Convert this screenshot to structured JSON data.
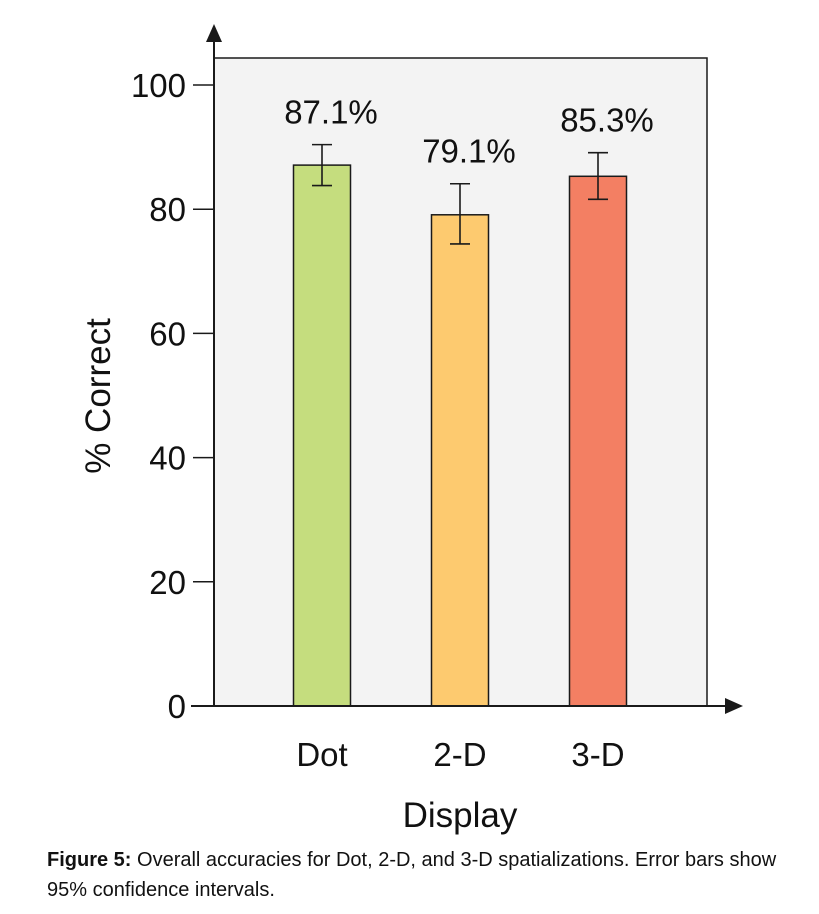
{
  "chart_data": {
    "type": "bar",
    "title": "",
    "xlabel": "Display",
    "ylabel": "% Correct",
    "categories": [
      "Dot",
      "2-D",
      "3-D"
    ],
    "values": [
      87.1,
      79.1,
      85.3
    ],
    "value_labels": [
      "87.1%",
      "79.1%",
      "85.3%"
    ],
    "error_bars": {
      "lower": [
        83.8,
        74.4,
        81.6
      ],
      "upper": [
        90.4,
        84.1,
        89.1
      ]
    },
    "colors": [
      "#c5dd7e",
      "#fdca6f",
      "#f37f63"
    ],
    "ylim": [
      0,
      100
    ],
    "yticks": [
      0,
      20,
      40,
      60,
      80,
      100
    ],
    "grid": false,
    "plot_background": "#f3f3f3"
  },
  "caption": {
    "label": "Figure 5:",
    "text": " Overall accuracies for Dot, 2-D, and 3-D spatializations. Error bars show 95% confidence intervals."
  }
}
